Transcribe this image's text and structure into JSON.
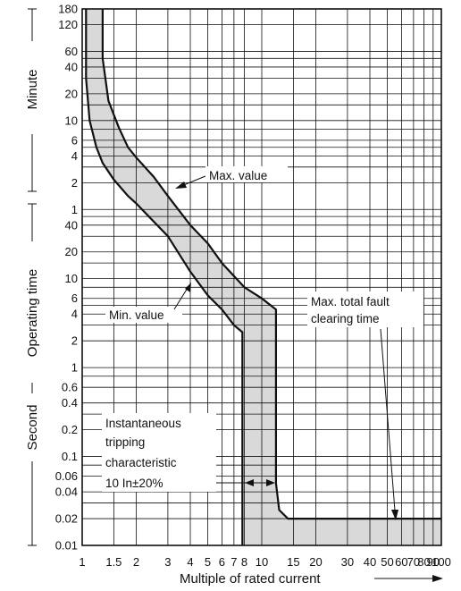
{
  "chart_data": {
    "type": "area",
    "xlabel": "Multiple of rated current",
    "x_scale": "log",
    "xlim": [
      1,
      100
    ],
    "y_scale": "log",
    "ylim_seconds": [
      0.01,
      10800
    ],
    "x_ticks": [
      {
        "v": 1,
        "label": "1"
      },
      {
        "v": 1.5,
        "label": "1.5"
      },
      {
        "v": 2,
        "label": "2"
      },
      {
        "v": 3,
        "label": "3"
      },
      {
        "v": 4,
        "label": "4"
      },
      {
        "v": 5,
        "label": "5"
      },
      {
        "v": 6,
        "label": "6"
      },
      {
        "v": 7,
        "label": "7"
      },
      {
        "v": 8,
        "label": "8"
      },
      {
        "v": 10,
        "label": "10"
      },
      {
        "v": 15,
        "label": "15"
      },
      {
        "v": 20,
        "label": "20"
      },
      {
        "v": 30,
        "label": "30"
      },
      {
        "v": 40,
        "label": "40"
      },
      {
        "v": 50,
        "label": "50"
      },
      {
        "v": 60,
        "label": "60"
      },
      {
        "v": 70,
        "label": "70"
      },
      {
        "v": 80,
        "label": "80"
      },
      {
        "v": 90,
        "label": "90"
      },
      {
        "v": 100,
        "label": "100"
      }
    ],
    "y_ticks": [
      {
        "s": 10800,
        "label": "180"
      },
      {
        "s": 7200,
        "label": "120"
      },
      {
        "s": 3600,
        "label": "60"
      },
      {
        "s": 2400,
        "label": "40"
      },
      {
        "s": 1200,
        "label": "20"
      },
      {
        "s": 600,
        "label": "10"
      },
      {
        "s": 360,
        "label": "6"
      },
      {
        "s": 240,
        "label": "4"
      },
      {
        "s": 120,
        "label": "2"
      },
      {
        "s": 60,
        "label": "1"
      },
      {
        "s": 40,
        "label": "40"
      },
      {
        "s": 20,
        "label": "20"
      },
      {
        "s": 10,
        "label": "10"
      },
      {
        "s": 6,
        "label": "6"
      },
      {
        "s": 4,
        "label": "4"
      },
      {
        "s": 2,
        "label": "2"
      },
      {
        "s": 1,
        "label": "1"
      },
      {
        "s": 0.6,
        "label": "0.6"
      },
      {
        "s": 0.4,
        "label": "0.4"
      },
      {
        "s": 0.2,
        "label": "0.2"
      },
      {
        "s": 0.1,
        "label": "0.1"
      },
      {
        "s": 0.06,
        "label": "0.06"
      },
      {
        "s": 0.04,
        "label": "0.04"
      },
      {
        "s": 0.02,
        "label": "0.02"
      },
      {
        "s": 0.01,
        "label": "0.01"
      }
    ],
    "y_minor_grid_seconds": [
      3000,
      1800,
      900,
      480,
      300,
      180,
      50,
      30,
      15,
      8,
      5,
      3,
      0.8,
      0.3,
      0.08,
      0.03
    ],
    "unit_labels": {
      "y_axis": "Operating time",
      "minutes": "Minute",
      "seconds": "Second"
    },
    "series": [
      {
        "name": "Min. value",
        "points": [
          [
            1.05,
            10800
          ],
          [
            1.05,
            1800
          ],
          [
            1.1,
            600
          ],
          [
            1.2,
            300
          ],
          [
            1.3,
            200
          ],
          [
            1.5,
            130
          ],
          [
            1.8,
            85
          ],
          [
            2,
            70
          ],
          [
            3,
            30
          ],
          [
            4,
            12
          ],
          [
            5,
            6.5
          ],
          [
            6,
            4.5
          ],
          [
            7,
            3
          ],
          [
            7.8,
            2.5
          ],
          [
            7.8,
            0.01
          ]
        ]
      },
      {
        "name": "Max. value",
        "points": [
          [
            1.3,
            10800
          ],
          [
            1.3,
            3000
          ],
          [
            1.4,
            1000
          ],
          [
            1.6,
            500
          ],
          [
            1.8,
            300
          ],
          [
            2,
            230
          ],
          [
            2.5,
            140
          ],
          [
            3,
            85
          ],
          [
            4,
            40
          ],
          [
            5,
            25
          ],
          [
            6,
            15
          ],
          [
            8,
            8
          ],
          [
            10,
            6
          ],
          [
            12,
            4.5
          ],
          [
            12,
            0.05
          ],
          [
            12.5,
            0.025
          ],
          [
            14,
            0.02
          ],
          [
            100,
            0.02
          ]
        ]
      }
    ],
    "annotations": {
      "max_value": "Max. value",
      "min_value": "Min. value",
      "max_total_line1": "Max. total fault",
      "max_total_line2": "clearing time",
      "inst_line1": "Instantaneous",
      "inst_line2": "tripping",
      "inst_line3": "characteristic",
      "inst_line4": "10 In±20%"
    }
  }
}
